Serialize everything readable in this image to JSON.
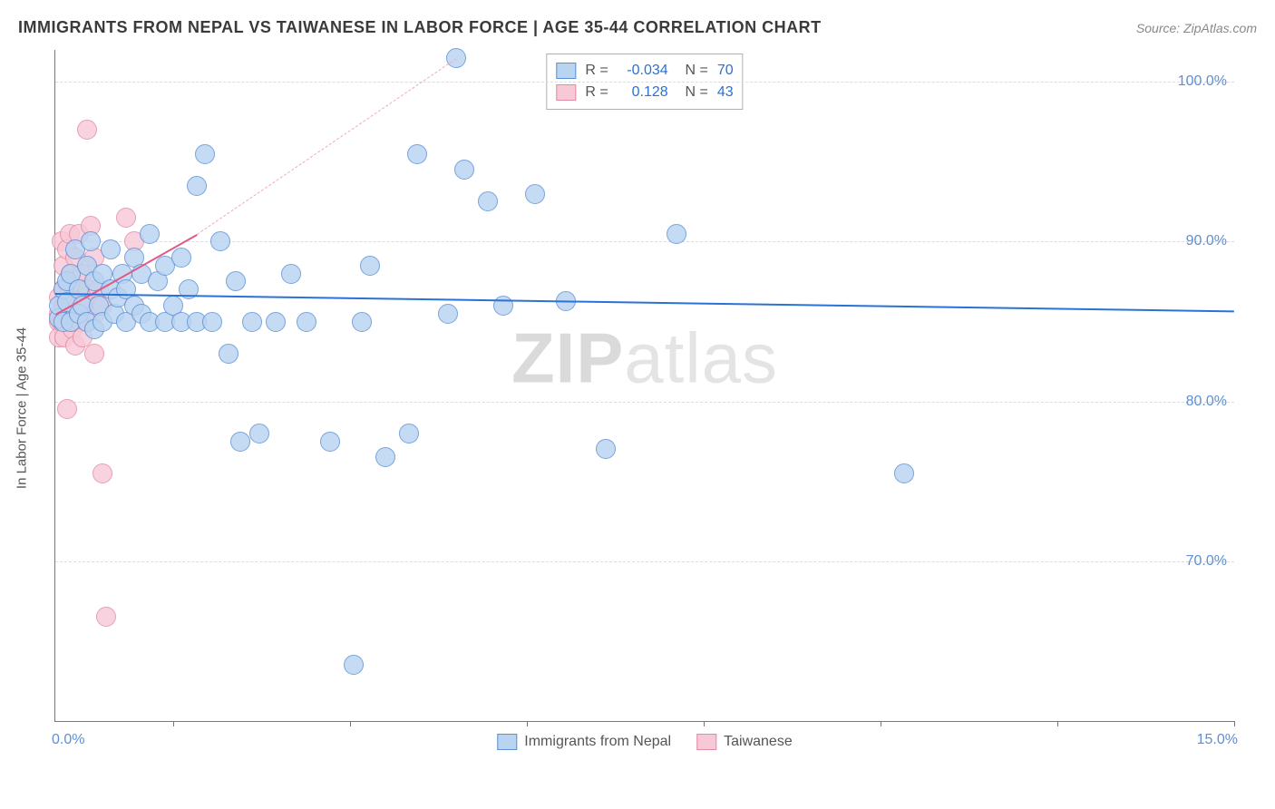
{
  "header": {
    "title": "IMMIGRANTS FROM NEPAL VS TAIWANESE IN LABOR FORCE | AGE 35-44 CORRELATION CHART",
    "source": "Source: ZipAtlas.com"
  },
  "watermark": {
    "bold": "ZIP",
    "rest": "atlas"
  },
  "chart": {
    "type": "scatter",
    "ylabel": "In Labor Force | Age 35-44",
    "x_axis": {
      "min": 0,
      "max": 15,
      "tick_positions": [
        1.5,
        3.75,
        6.0,
        8.25,
        10.5,
        12.75,
        15
      ],
      "labels": {
        "left": "0.0%",
        "right": "15.0%"
      }
    },
    "y_axis": {
      "min": 60,
      "max": 102,
      "gridlines": [
        70,
        80,
        90,
        100
      ],
      "labels": [
        "70.0%",
        "80.0%",
        "90.0%",
        "100.0%"
      ]
    },
    "background_color": "#ffffff",
    "grid_color": "#dcdcdc",
    "axis_color": "#777777",
    "tick_label_color": "#5b8fd6",
    "marker_radius": 11,
    "marker_border_width": 1,
    "series": [
      {
        "name": "Immigrants from Nepal",
        "fill": "#b9d4f1",
        "stroke": "#5b8fd6",
        "r": -0.034,
        "n": 70,
        "trend": {
          "y_at_xmin": 86.8,
          "y_at_xmax": 85.7,
          "color": "#2a72d4",
          "width": 2.5,
          "dash": "solid",
          "extrapolate_dash": false
        },
        "points": [
          [
            0.05,
            85.2
          ],
          [
            0.05,
            86.0
          ],
          [
            0.1,
            87.0
          ],
          [
            0.1,
            85.0
          ],
          [
            0.15,
            87.5
          ],
          [
            0.15,
            86.2
          ],
          [
            0.2,
            88.0
          ],
          [
            0.2,
            85.0
          ],
          [
            0.25,
            89.5
          ],
          [
            0.3,
            87.0
          ],
          [
            0.3,
            85.5
          ],
          [
            0.35,
            86.0
          ],
          [
            0.4,
            88.5
          ],
          [
            0.4,
            85.0
          ],
          [
            0.45,
            90.0
          ],
          [
            0.5,
            87.5
          ],
          [
            0.5,
            84.5
          ],
          [
            0.55,
            86.0
          ],
          [
            0.6,
            88.0
          ],
          [
            0.6,
            85.0
          ],
          [
            0.7,
            87.0
          ],
          [
            0.7,
            89.5
          ],
          [
            0.75,
            85.5
          ],
          [
            0.8,
            86.5
          ],
          [
            0.85,
            88.0
          ],
          [
            0.9,
            85.0
          ],
          [
            0.9,
            87.0
          ],
          [
            1.0,
            86.0
          ],
          [
            1.0,
            89.0
          ],
          [
            1.1,
            85.5
          ],
          [
            1.1,
            88.0
          ],
          [
            1.2,
            90.5
          ],
          [
            1.2,
            85.0
          ],
          [
            1.3,
            87.5
          ],
          [
            1.4,
            85.0
          ],
          [
            1.4,
            88.5
          ],
          [
            1.5,
            86.0
          ],
          [
            1.6,
            89.0
          ],
          [
            1.6,
            85.0
          ],
          [
            1.7,
            87.0
          ],
          [
            1.8,
            93.5
          ],
          [
            1.8,
            85.0
          ],
          [
            1.9,
            95.5
          ],
          [
            2.0,
            85.0
          ],
          [
            2.1,
            90.0
          ],
          [
            2.2,
            83.0
          ],
          [
            2.3,
            87.5
          ],
          [
            2.35,
            77.5
          ],
          [
            2.5,
            85.0
          ],
          [
            2.6,
            78.0
          ],
          [
            2.8,
            85.0
          ],
          [
            3.0,
            88.0
          ],
          [
            3.2,
            85.0
          ],
          [
            3.5,
            77.5
          ],
          [
            3.8,
            63.5
          ],
          [
            3.9,
            85.0
          ],
          [
            4.0,
            88.5
          ],
          [
            4.2,
            76.5
          ],
          [
            4.5,
            78.0
          ],
          [
            4.6,
            95.5
          ],
          [
            5.0,
            85.5
          ],
          [
            5.1,
            101.5
          ],
          [
            5.2,
            94.5
          ],
          [
            5.5,
            92.5
          ],
          [
            5.7,
            86.0
          ],
          [
            6.1,
            93.0
          ],
          [
            6.5,
            86.3
          ],
          [
            7.0,
            77.0
          ],
          [
            7.9,
            90.5
          ],
          [
            10.8,
            75.5
          ]
        ]
      },
      {
        "name": "Taiwanese",
        "fill": "#f7c9d7",
        "stroke": "#e38aa5",
        "r": 0.128,
        "n": 43,
        "trend": {
          "y_at_xmin": 85.5,
          "y_at_xmax_data": 90.5,
          "xmax_data": 1.8,
          "extrapolate_to": 5.1,
          "y_at_extrapolate": 101.5,
          "color": "#e05a87",
          "width": 2,
          "dash": "solid",
          "extrapolate_color": "#f0a8bf",
          "extrapolate_dash": "dashed"
        },
        "points": [
          [
            0.05,
            85.0
          ],
          [
            0.05,
            85.5
          ],
          [
            0.05,
            86.5
          ],
          [
            0.05,
            84.0
          ],
          [
            0.08,
            90.0
          ],
          [
            0.08,
            85.0
          ],
          [
            0.1,
            87.0
          ],
          [
            0.1,
            85.0
          ],
          [
            0.1,
            88.5
          ],
          [
            0.12,
            86.0
          ],
          [
            0.12,
            84.0
          ],
          [
            0.15,
            89.5
          ],
          [
            0.15,
            85.5
          ],
          [
            0.15,
            79.5
          ],
          [
            0.18,
            87.0
          ],
          [
            0.18,
            90.5
          ],
          [
            0.2,
            85.0
          ],
          [
            0.2,
            86.5
          ],
          [
            0.2,
            88.0
          ],
          [
            0.22,
            84.5
          ],
          [
            0.25,
            89.0
          ],
          [
            0.25,
            85.0
          ],
          [
            0.25,
            83.5
          ],
          [
            0.28,
            87.5
          ],
          [
            0.3,
            86.0
          ],
          [
            0.3,
            90.5
          ],
          [
            0.32,
            85.0
          ],
          [
            0.35,
            88.0
          ],
          [
            0.35,
            84.0
          ],
          [
            0.38,
            86.5
          ],
          [
            0.4,
            97.0
          ],
          [
            0.4,
            85.0
          ],
          [
            0.42,
            87.0
          ],
          [
            0.45,
            91.0
          ],
          [
            0.5,
            85.5
          ],
          [
            0.5,
            89.0
          ],
          [
            0.5,
            83.0
          ],
          [
            0.55,
            87.0
          ],
          [
            0.6,
            75.5
          ],
          [
            0.6,
            86.0
          ],
          [
            0.65,
            66.5
          ],
          [
            0.9,
            91.5
          ],
          [
            1.0,
            90.0
          ]
        ]
      }
    ],
    "bottom_legend": [
      {
        "label": "Immigrants from Nepal",
        "fill": "#b9d4f1",
        "stroke": "#5b8fd6"
      },
      {
        "label": "Taiwanese",
        "fill": "#f7c9d7",
        "stroke": "#e38aa5"
      }
    ]
  }
}
